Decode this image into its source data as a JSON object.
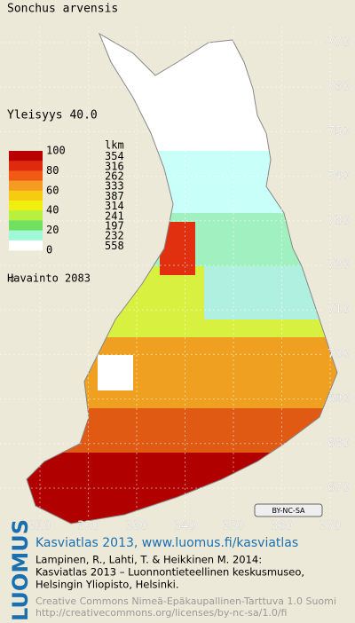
{
  "title": "Sonchus arvensis",
  "frequency": "Yleisyys  40.0",
  "legend": {
    "count_header": "lkm",
    "scale_labels": [
      100,
      80,
      60,
      40,
      20,
      0
    ],
    "classes": [
      {
        "color": "#b80000",
        "count": 354
      },
      {
        "color": "#e02a10",
        "count": 316
      },
      {
        "color": "#f05a14",
        "count": 262
      },
      {
        "color": "#f59a22",
        "count": 333
      },
      {
        "color": "#f5cc10",
        "count": 387
      },
      {
        "color": "#f0f010",
        "count": 314
      },
      {
        "color": "#b8f040",
        "count": 241
      },
      {
        "color": "#70e060",
        "count": 197
      },
      {
        "color": "#a0f8d8",
        "count": 232
      },
      {
        "color": "#ffffff",
        "count": 558
      }
    ],
    "observation": "Havainto 2083"
  },
  "map": {
    "y_ticks": [
      770,
      760,
      750,
      740,
      730,
      720,
      710,
      700,
      690,
      680,
      670
    ],
    "x_ticks": [
      310,
      320,
      330,
      340,
      350,
      360,
      370
    ],
    "license_badge": "BY-NC-SA"
  },
  "footer": {
    "logo": "LUOMUS",
    "site": "Kasviatlas 2013, www.luomus.fi/kasviatlas",
    "citation": [
      "Lampinen, R., Lahti, T. & Heikkinen M. 2014:",
      "Kasviatlas 2013 – Luonnontieteellinen keskusmuseo,",
      "Helsingin Yliopisto, Helsinki."
    ],
    "license": [
      "Creative Commons Nimeä-Epäkaupallinen-Tarttuva 1.0 Suomi",
      "http://creativecommons.org/licenses/by-nc-sa/1.0/fi"
    ]
  }
}
